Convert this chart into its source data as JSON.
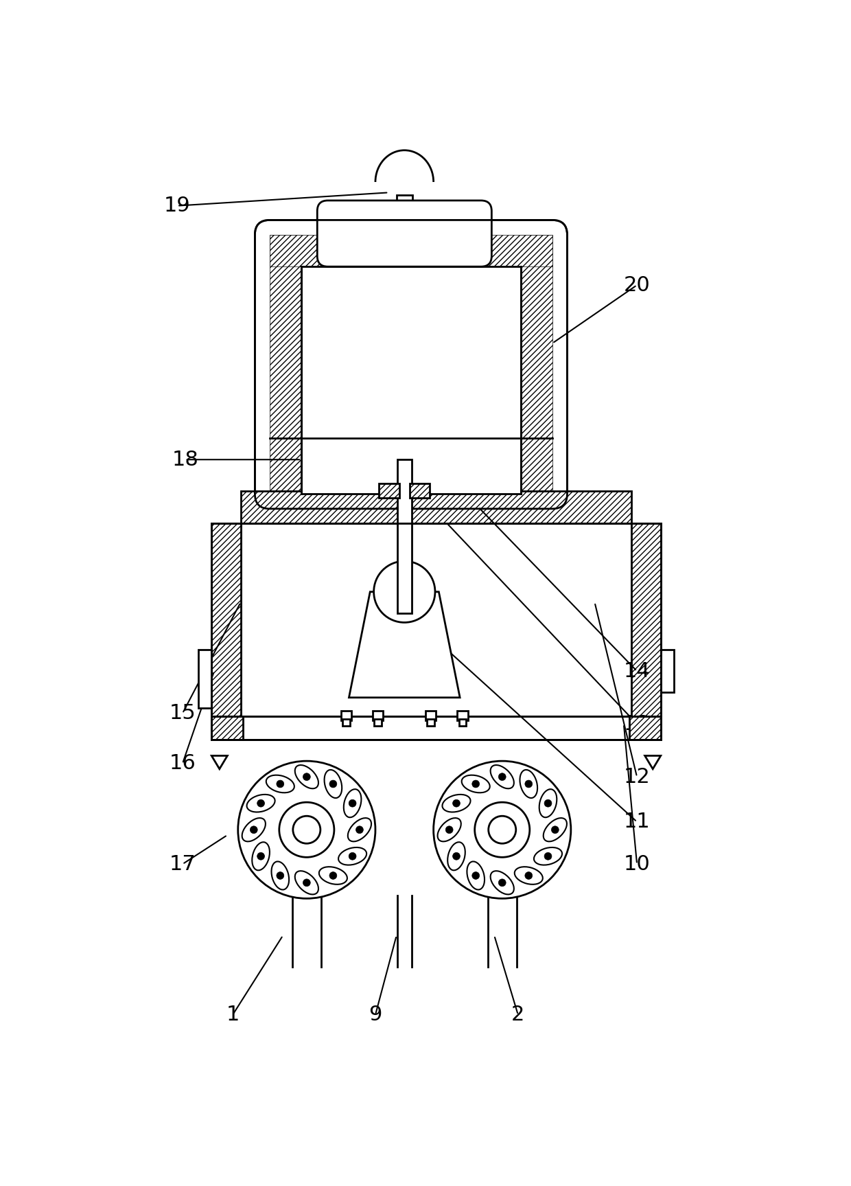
{
  "bg_color": "#ffffff",
  "line_color": "#000000",
  "label_fontsize": 22,
  "line_width": 2.0,
  "figsize": [
    12.4,
    17.27
  ]
}
